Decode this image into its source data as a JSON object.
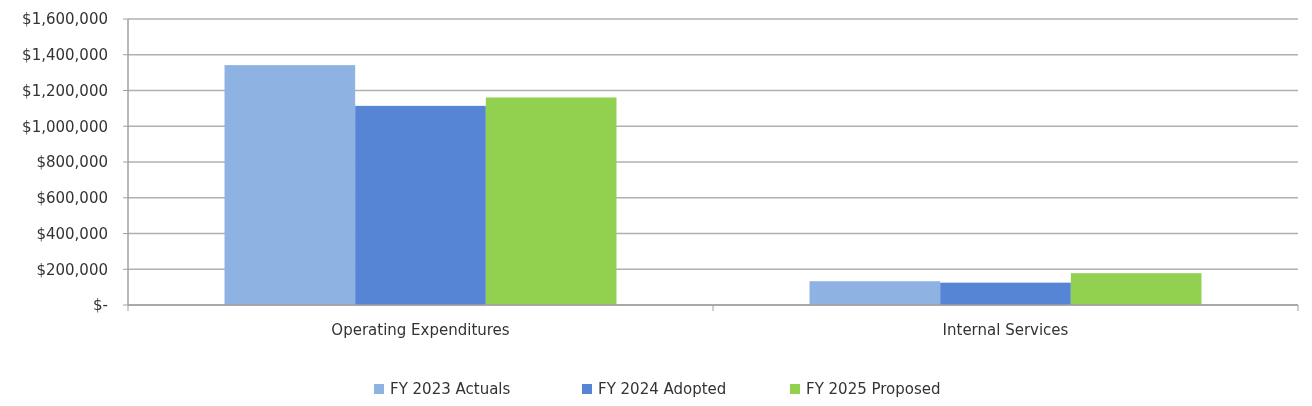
{
  "chart_data": {
    "type": "bar",
    "categories": [
      "Operating Expenditures",
      "Internal Services"
    ],
    "series": [
      {
        "name": "FY 2023 Actuals",
        "color": "#8eb3e3",
        "values": [
          1342000,
          133000
        ]
      },
      {
        "name": "FY 2024 Adopted",
        "color": "#5585d4",
        "values": [
          1114000,
          125000
        ]
      },
      {
        "name": "FY 2025 Proposed",
        "color": "#92d050",
        "values": [
          1161000,
          178000
        ]
      }
    ],
    "ylim": [
      0,
      1600000
    ],
    "yticks": [
      {
        "value": 0,
        "label": "$-"
      },
      {
        "value": 200000,
        "label": "$200,000"
      },
      {
        "value": 400000,
        "label": "$400,000"
      },
      {
        "value": 600000,
        "label": "$600,000"
      },
      {
        "value": 800000,
        "label": "$800,000"
      },
      {
        "value": 1000000,
        "label": "$1,000,000"
      },
      {
        "value": 1200000,
        "label": "$1,200,000"
      },
      {
        "value": 1400000,
        "label": "$1,400,000"
      },
      {
        "value": 1600000,
        "label": "$1,600,000"
      }
    ],
    "grid": "y",
    "legend": "bottom"
  }
}
